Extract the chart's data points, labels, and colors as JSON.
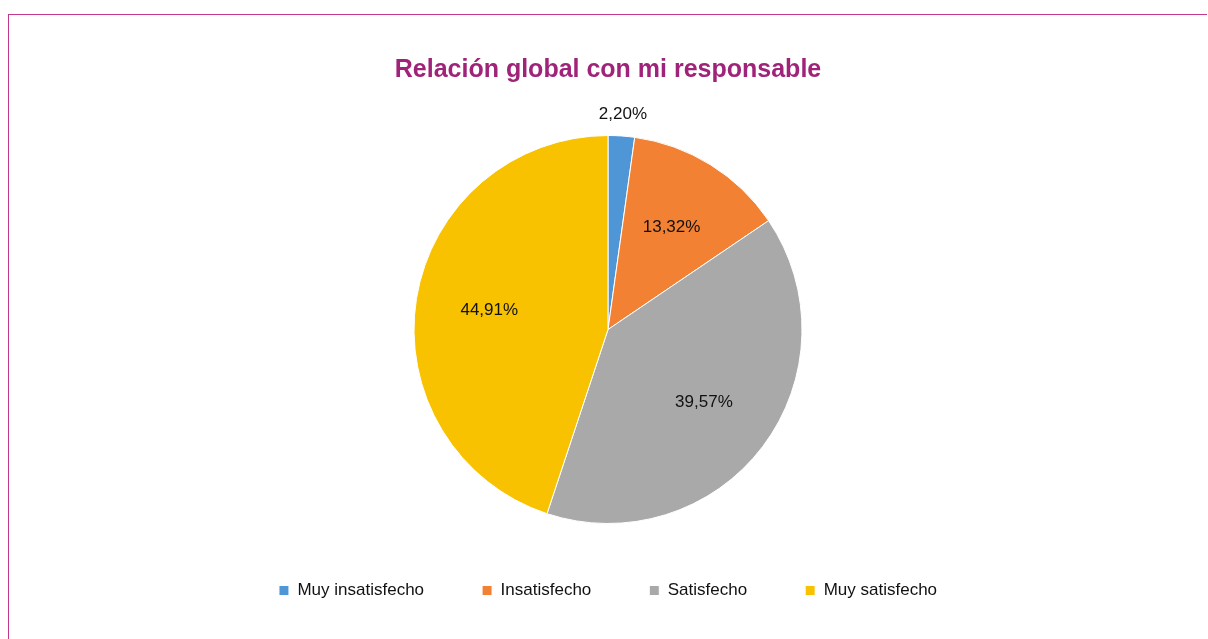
{
  "chart_data": {
    "type": "pie",
    "title": "Relación global con mi responsable",
    "categories": [
      "Muy insatisfecho",
      "Insatisfecho",
      "Satisfecho",
      "Muy satisfecho"
    ],
    "values": [
      2.2,
      13.32,
      39.57,
      44.91
    ],
    "value_labels": [
      "2,20%",
      "13,32%",
      "39,57%",
      "44,91%"
    ],
    "colors": [
      "#4f96d6",
      "#f28133",
      "#a9a9a9",
      "#f8c200"
    ],
    "legend": "bottom"
  }
}
